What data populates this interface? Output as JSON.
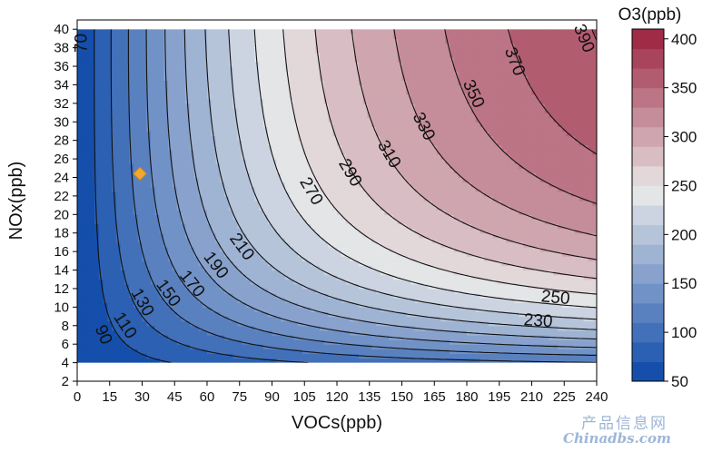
{
  "chart_data": {
    "type": "heatmap",
    "subtype": "filled-contour",
    "xlabel": "VOCs(ppb)",
    "ylabel": "NOx(ppb)",
    "colorbar_title": "O3(ppb)",
    "xlim": [
      0,
      240
    ],
    "ylim": [
      2,
      41
    ],
    "x_ticks": [
      0,
      15,
      30,
      45,
      60,
      75,
      90,
      105,
      120,
      135,
      150,
      165,
      180,
      195,
      210,
      225,
      240
    ],
    "y_ticks": [
      2,
      4,
      6,
      8,
      10,
      12,
      14,
      16,
      18,
      20,
      22,
      24,
      26,
      28,
      30,
      32,
      34,
      36,
      38,
      40
    ],
    "colorbar_ticks": [
      50,
      100,
      150,
      200,
      250,
      300,
      350,
      400
    ],
    "colorbar_range": [
      50,
      410
    ],
    "data_x_range": [
      0,
      240
    ],
    "data_y_range": [
      4,
      40
    ],
    "contour_levels": [
      70,
      90,
      110,
      130,
      150,
      170,
      190,
      210,
      230,
      250,
      270,
      290,
      310,
      330,
      350,
      370,
      390
    ],
    "contour_labels": [
      {
        "text": "70",
        "x": 2,
        "y": 38.5
      },
      {
        "text": "90",
        "x": 12,
        "y": 7
      },
      {
        "text": "110",
        "x": 22,
        "y": 8
      },
      {
        "text": "130",
        "x": 30,
        "y": 10.5
      },
      {
        "text": "150",
        "x": 42,
        "y": 11.5
      },
      {
        "text": "170",
        "x": 53,
        "y": 12.5
      },
      {
        "text": "190",
        "x": 64,
        "y": 14.5
      },
      {
        "text": "210",
        "x": 76,
        "y": 16.5
      },
      {
        "text": "230",
        "x": 213,
        "y": 8.5
      },
      {
        "text": "250",
        "x": 221,
        "y": 11
      },
      {
        "text": "270",
        "x": 108,
        "y": 22.5
      },
      {
        "text": "290",
        "x": 126,
        "y": 24.5
      },
      {
        "text": "310",
        "x": 144,
        "y": 26.5
      },
      {
        "text": "330",
        "x": 160,
        "y": 29.5
      },
      {
        "text": "350",
        "x": 183,
        "y": 33
      },
      {
        "text": "370",
        "x": 202,
        "y": 36.5
      },
      {
        "text": "390",
        "x": 234,
        "y": 39
      }
    ],
    "marker": {
      "x": 29,
      "y": 24.4,
      "shape": "diamond",
      "color": "#f0a830"
    },
    "colormap": {
      "low": "#0a47a8",
      "mid": "#e9e9e9",
      "high": "#9a1f3c"
    }
  },
  "watermark": {
    "cn": "产品信息网",
    "en": "Chinadbs.com"
  }
}
